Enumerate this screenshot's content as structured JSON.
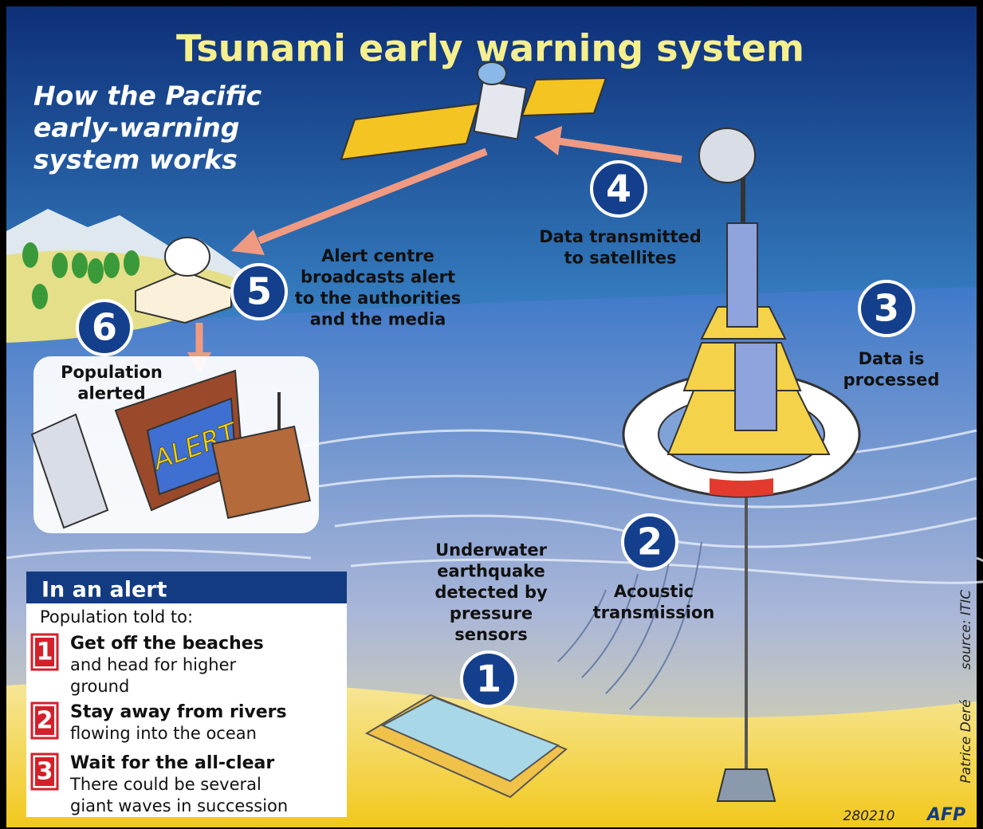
{
  "title": "Tsunami early warning system",
  "subtitle": [
    "How the Pacific",
    "early-warning",
    "system works"
  ],
  "steps": [
    {
      "number": "1",
      "label": [
        "Underwater",
        "earthquake",
        "detected by",
        "pressure",
        "sensors"
      ]
    },
    {
      "number": "2",
      "label": [
        "Acoustic",
        "transmission"
      ]
    },
    {
      "number": "3",
      "label": [
        "Data is",
        "processed"
      ]
    },
    {
      "number": "4",
      "label": [
        "Data transmitted",
        "to satellites"
      ]
    },
    {
      "number": "5",
      "label": [
        "Alert centre",
        "broadcasts alert",
        "to the authorities",
        "and the media"
      ]
    },
    {
      "number": "6",
      "label": [
        "Population",
        "alerted"
      ]
    }
  ],
  "screen_text": "ALERT",
  "alert_box": {
    "heading": "In an alert",
    "intro": "Population told to:",
    "items": [
      {
        "number": "1",
        "title": "Get off the beaches",
        "text": [
          "and head for higher",
          "ground"
        ]
      },
      {
        "number": "2",
        "title": "Stay away from rivers",
        "text": [
          "flowing into the ocean"
        ]
      },
      {
        "number": "3",
        "title": "Wait for the all-clear",
        "text": [
          "There could be several",
          "giant waves in succession"
        ]
      }
    ]
  },
  "source": "source: ITIC",
  "credit": "Patrice Deré",
  "code": "280210",
  "agency": "AFP"
}
